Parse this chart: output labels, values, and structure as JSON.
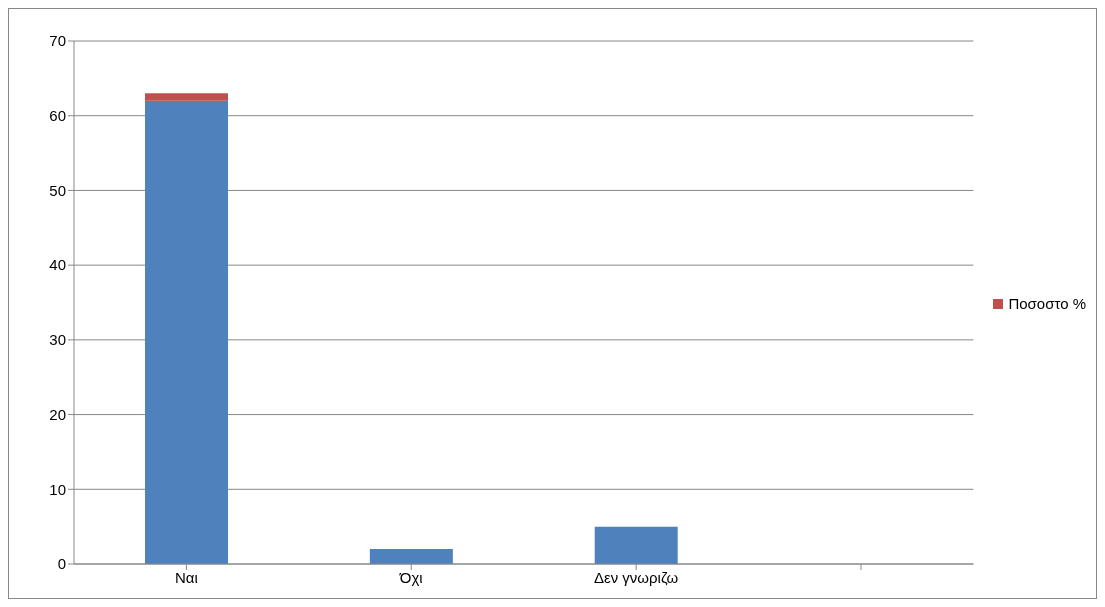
{
  "chart_data": {
    "type": "bar",
    "stacked": true,
    "categories": [
      "Ναι",
      "Όχι",
      "Δεν  γνωριζω",
      null
    ],
    "series": [
      {
        "color": "#4f81bd",
        "values": [
          62,
          2,
          5,
          null
        ]
      },
      {
        "name": "Ποσοστο %",
        "color": "#c0504d",
        "values": [
          1,
          null,
          null,
          null
        ]
      }
    ],
    "ylim": [
      0,
      70
    ],
    "yticks": [
      0,
      10,
      20,
      30,
      40,
      50,
      60,
      70
    ],
    "grid": "y",
    "legend": "right"
  }
}
